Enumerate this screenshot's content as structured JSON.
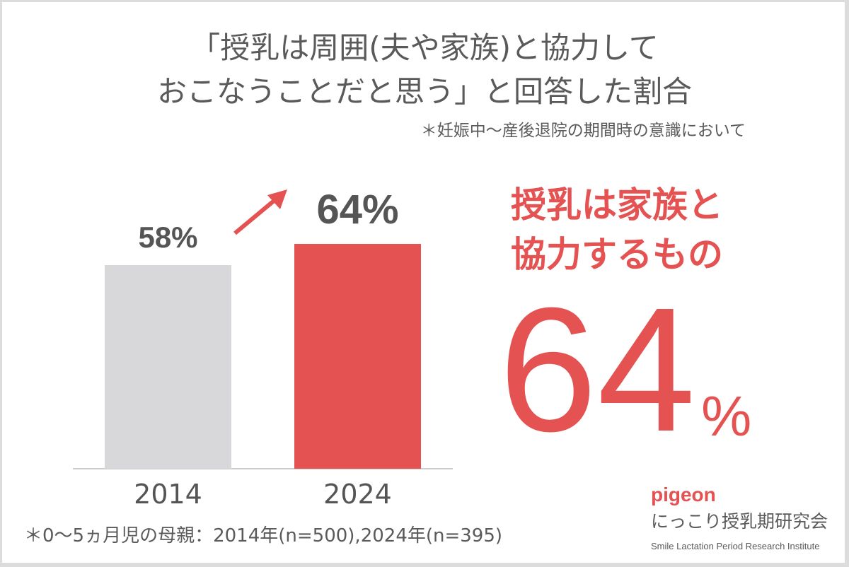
{
  "title_line1": "「授乳は周囲(夫や家族)と協力して",
  "title_line2": "おこなうことだと思う」と回答した割合",
  "note": "＊妊娠中〜産後退院の期間時の意識において",
  "chart_data": {
    "type": "bar",
    "categories": [
      "2014",
      "2024"
    ],
    "values": [
      58,
      64
    ],
    "value_labels": [
      "58%",
      "64%"
    ],
    "ylim": [
      0,
      100
    ],
    "colors": [
      "#d8d7da",
      "#e55252"
    ],
    "grid": false,
    "annotation": "arrow-up-right"
  },
  "headline_line1": "授乳は家族と",
  "headline_line2": "協力するもの",
  "headline_value": "64",
  "headline_unit": "%",
  "footnote": "＊0〜5ヵ月児の母親：2014年(n=500),2024年(n=395)",
  "logo": {
    "brand": "pigeon",
    "org_ja": "にっこり授乳期研究会",
    "org_en": "Smile Lactation Period Research Institute"
  }
}
